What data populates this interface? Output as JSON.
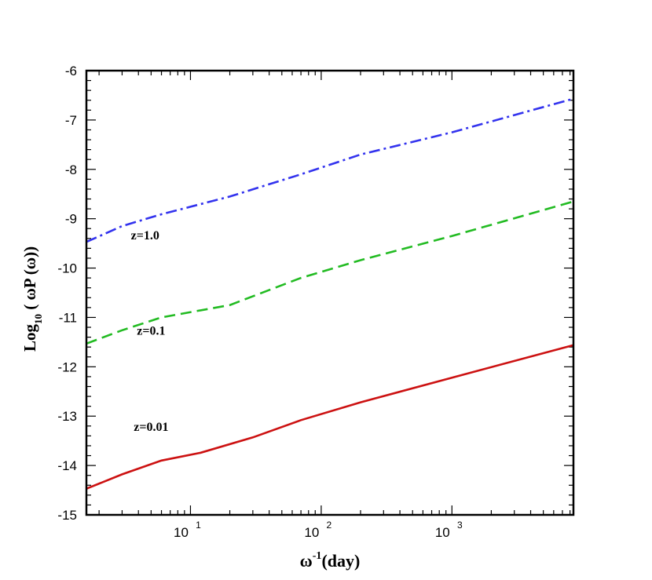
{
  "chart_data": {
    "type": "line",
    "xlabel": {
      "base": "ω",
      "sup": "-1",
      "rest": "(day)"
    },
    "ylabel": {
      "pre": "Log",
      "sub": "10",
      "post": " ( ωP (ω))"
    },
    "xscale": "log",
    "xlim": [
      1.6,
      8500
    ],
    "ylim": [
      -15,
      -6
    ],
    "grid": false,
    "x_ticks": [
      {
        "value": 10,
        "base": "10",
        "exp": "1"
      },
      {
        "value": 100,
        "base": "10",
        "exp": "2"
      },
      {
        "value": 1000,
        "base": "10",
        "exp": "3"
      }
    ],
    "y_ticks": [
      {
        "value": -6,
        "label": "-6"
      },
      {
        "value": -7,
        "label": "-7"
      },
      {
        "value": -8,
        "label": "-8"
      },
      {
        "value": -9,
        "label": "-9"
      },
      {
        "value": -10,
        "label": "-10"
      },
      {
        "value": -11,
        "label": "-11"
      },
      {
        "value": -12,
        "label": "-12"
      },
      {
        "value": -13,
        "label": "-13"
      },
      {
        "value": -14,
        "label": "-14"
      },
      {
        "value": -15,
        "label": "-15"
      }
    ],
    "series": [
      {
        "label": "z=1.0",
        "color": "#3333ee",
        "style": "dashdot",
        "label_at": [
          4.5,
          -9.42
        ],
        "points": [
          [
            1.6,
            -9.47
          ],
          [
            3,
            -9.15
          ],
          [
            6,
            -8.91
          ],
          [
            20,
            -8.55
          ],
          [
            70,
            -8.1
          ],
          [
            200,
            -7.7
          ],
          [
            1000,
            -7.25
          ],
          [
            8500,
            -6.57
          ]
        ]
      },
      {
        "label": "z=0.1",
        "color": "#22bb22",
        "style": "dashed",
        "label_at": [
          5.0,
          -11.35
        ],
        "points": [
          [
            1.6,
            -11.53
          ],
          [
            3,
            -11.26
          ],
          [
            6,
            -11.0
          ],
          [
            20,
            -10.75
          ],
          [
            70,
            -10.2
          ],
          [
            200,
            -9.84
          ],
          [
            1000,
            -9.35
          ],
          [
            8500,
            -8.65
          ]
        ]
      },
      {
        "label": "z=0.01",
        "color": "#cc1111",
        "style": "solid",
        "label_at": [
          5.0,
          -13.3
        ],
        "points": [
          [
            1.6,
            -14.47
          ],
          [
            3,
            -14.18
          ],
          [
            6,
            -13.9
          ],
          [
            12,
            -13.74
          ],
          [
            30,
            -13.43
          ],
          [
            70,
            -13.08
          ],
          [
            200,
            -12.72
          ],
          [
            1000,
            -12.22
          ],
          [
            8500,
            -11.56
          ]
        ]
      }
    ]
  }
}
